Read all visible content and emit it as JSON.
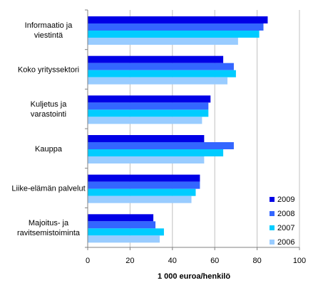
{
  "chart_data": {
    "type": "bar",
    "orientation": "horizontal",
    "categories": [
      [
        "Informaatio ja",
        "viestintä"
      ],
      [
        "Koko yrityssektori"
      ],
      [
        "Kuljetus ja",
        "varastointi"
      ],
      [
        "Kauppa"
      ],
      [
        "Liike-elämän palvelut"
      ],
      [
        "Majoitus- ja",
        "ravitsemistoiminta"
      ]
    ],
    "series": [
      {
        "name": "2009",
        "color": "#0000e6",
        "values": [
          85,
          64,
          58,
          55,
          53,
          31
        ]
      },
      {
        "name": "2008",
        "color": "#3366ff",
        "values": [
          83,
          69,
          57,
          69,
          53,
          32
        ]
      },
      {
        "name": "2007",
        "color": "#00ccff",
        "values": [
          81,
          70,
          57,
          64,
          51,
          36
        ]
      },
      {
        "name": "2006",
        "color": "#99ccff",
        "values": [
          71,
          66,
          54,
          55,
          49,
          34
        ]
      }
    ],
    "xlabel": "1 000 euroa/henkilö",
    "xlim": [
      0,
      100
    ],
    "xticks": [
      0,
      20,
      40,
      60,
      80,
      100
    ],
    "grid": true,
    "legend_position": "right-bottom",
    "grid_color": "#c0c0c0",
    "axis_color": "#808080"
  }
}
